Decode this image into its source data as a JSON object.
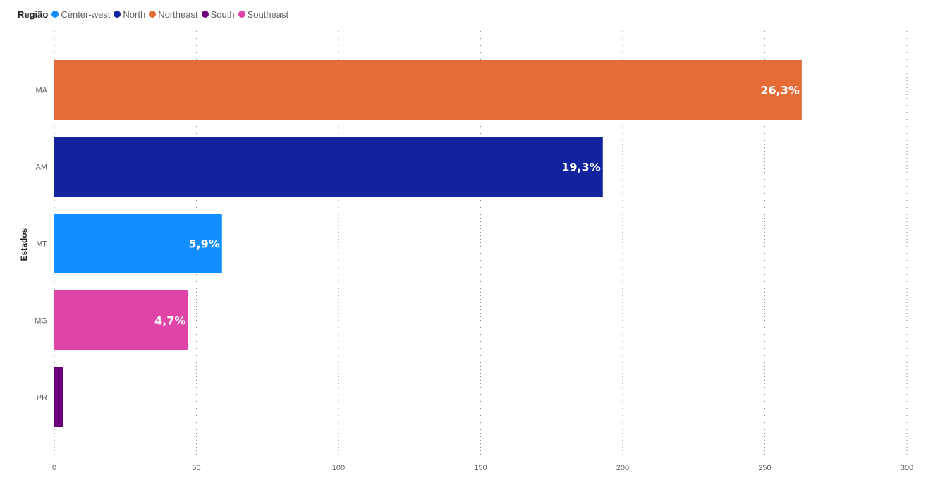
{
  "legend": {
    "title": "Região",
    "items": [
      {
        "label": "Center-west",
        "color": "#118dff"
      },
      {
        "label": "North",
        "color": "#12239e"
      },
      {
        "label": "Northeast",
        "color": "#e66c37"
      },
      {
        "label": "South",
        "color": "#6b007b"
      },
      {
        "label": "Southeast",
        "color": "#e044a7"
      }
    ]
  },
  "chart_data": {
    "type": "bar",
    "orientation": "horizontal",
    "ylabel": "Estados",
    "xlabel": "",
    "categories": [
      "MA",
      "AM",
      "MT",
      "MG",
      "PR"
    ],
    "values": [
      263,
      193,
      59,
      47,
      3
    ],
    "regions": [
      "Northeast",
      "North",
      "Center-west",
      "Southeast",
      "South"
    ],
    "data_labels": [
      "26,3%",
      "19,3%",
      "5,9%",
      "4,7%",
      ""
    ],
    "colors": [
      "#e66c37",
      "#12239e",
      "#118dff",
      "#e044a7",
      "#6b007b"
    ],
    "xlim": [
      0,
      300
    ],
    "xticks": [
      0,
      50,
      100,
      150,
      200,
      250,
      300
    ],
    "grid": "vertical-dotted",
    "legend_position": "top-left"
  }
}
